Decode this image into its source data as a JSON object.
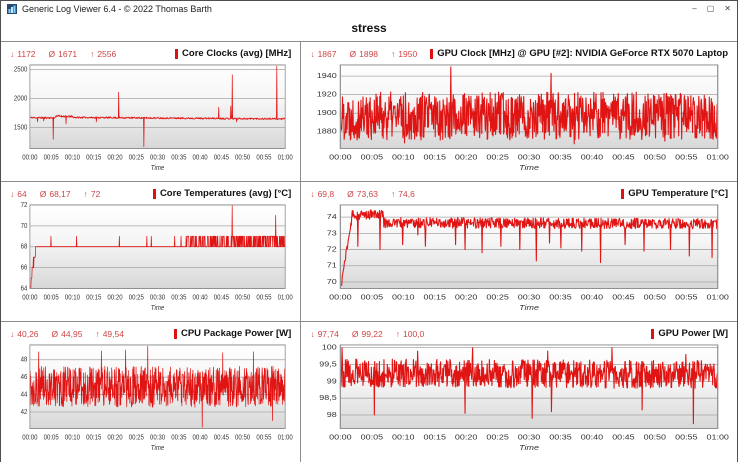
{
  "window": {
    "title": "Generic Log Viewer 6.4 - © 2022 Thomas Barth",
    "controls": {
      "minimize": "–",
      "maximize": "▢",
      "close": "✕"
    }
  },
  "page_title": "stress",
  "stats_symbols": {
    "min": "↓",
    "avg": "Ø",
    "max": "↑"
  },
  "colors": {
    "line": "#e11414",
    "stats_text": "#cf4545",
    "legend_chip": "#dd1111",
    "grid": "#a6a6a6",
    "plot_border": "#8f8f8f",
    "plot_gradient_top": "#ffffff",
    "plot_gradient_bottom": "#d7d7d7"
  },
  "x_axis": {
    "label": "Time",
    "ticks": [
      "00:00",
      "00:05",
      "00:10",
      "00:15",
      "00:20",
      "00:25",
      "00:30",
      "00:35",
      "00:40",
      "00:45",
      "00:50",
      "00:55",
      "01:00"
    ]
  },
  "chart_data": [
    {
      "type": "line",
      "title": "Core Clocks (avg) [MHz]",
      "stats": {
        "min": "1172",
        "avg": "1671",
        "max": "2556"
      },
      "ylim": [
        1140,
        2580
      ],
      "y_ticks": [
        {
          "v": 1500,
          "label": "1500"
        },
        {
          "v": 2000,
          "label": "2000"
        },
        {
          "v": 2500,
          "label": "2500"
        }
      ],
      "seed": 11,
      "points": 700,
      "segments": [
        {
          "t0": 0,
          "t1": 0.1,
          "v0": 1672,
          "v1": 1668,
          "noise": 16
        },
        {
          "t0": 0.1,
          "t1": 0.17,
          "v0": 1702,
          "v1": 1688,
          "noise": 18
        },
        {
          "t0": 0.17,
          "t1": 1,
          "v0": 1676,
          "v1": 1650,
          "noise": 14
        }
      ],
      "clamp": [
        1160,
        2560
      ],
      "spikes": [
        {
          "t": 0.03,
          "v": 1600
        },
        {
          "t": 0.055,
          "v": 1615
        },
        {
          "t": 0.092,
          "v": 1300
        },
        {
          "t": 0.142,
          "v": 1565
        },
        {
          "t": 0.26,
          "v": 1602
        },
        {
          "t": 0.347,
          "v": 2110
        },
        {
          "t": 0.447,
          "v": 1172
        },
        {
          "t": 0.74,
          "v": 1850
        },
        {
          "t": 0.787,
          "v": 1870
        },
        {
          "t": 0.792,
          "v": 2410
        },
        {
          "t": 0.81,
          "v": 1600
        },
        {
          "t": 0.967,
          "v": 2556
        }
      ]
    },
    {
      "type": "line",
      "title": "GPU Clock [MHz] @ GPU [#2]: NVIDIA GeForce RTX 5070 Laptop",
      "stats": {
        "min": "1867",
        "avg": "1898",
        "max": "1950"
      },
      "ylim": [
        1862,
        1952
      ],
      "y_ticks": [
        {
          "v": 1880,
          "label": "1880"
        },
        {
          "v": 1900,
          "label": "1900"
        },
        {
          "v": 1920,
          "label": "1920"
        },
        {
          "v": 1940,
          "label": "1940"
        }
      ],
      "seed": 22,
      "points": 900,
      "segments": [
        {
          "t0": 0,
          "t1": 1,
          "v0": 1897,
          "v1": 1897,
          "noise": 26
        }
      ],
      "clamp": [
        1867,
        1934
      ],
      "spikes": [
        {
          "t": 0.17,
          "v": 1868
        },
        {
          "t": 0.292,
          "v": 1950
        },
        {
          "t": 0.558,
          "v": 1943
        },
        {
          "t": 0.62,
          "v": 1867
        },
        {
          "t": 0.86,
          "v": 1870
        }
      ]
    },
    {
      "type": "line",
      "title": "Core Temperatures (avg) [°C]",
      "stats": {
        "min": "64",
        "avg": "68,17",
        "max": "72"
      },
      "ylim": [
        64,
        72
      ],
      "y_ticks": [
        {
          "v": 64,
          "label": "64"
        },
        {
          "v": 66,
          "label": "66"
        },
        {
          "v": 68,
          "label": "68"
        },
        {
          "v": 70,
          "label": "70"
        },
        {
          "v": 72,
          "label": "72"
        }
      ],
      "seed": 33,
      "points": 800,
      "quantize": true,
      "segments": [
        {
          "t0": 0,
          "t1": 0.004,
          "v0": 64,
          "v1": 64,
          "noise": 0
        },
        {
          "t0": 0.004,
          "t1": 0.022,
          "v0": 64.6,
          "v1": 67.8,
          "noise": 0.3
        },
        {
          "t0": 0.022,
          "t1": 0.608,
          "v0": 68.05,
          "v1": 68.05,
          "noise": 0.4
        },
        {
          "t0": 0.608,
          "t1": 1,
          "v0": 68.45,
          "v1": 68.45,
          "noise": 0.52
        }
      ],
      "clamp": [
        64,
        72
      ],
      "spikes": [
        {
          "t": 0.083,
          "v": 69
        },
        {
          "t": 0.183,
          "v": 69
        },
        {
          "t": 0.35,
          "v": 69
        },
        {
          "t": 0.458,
          "v": 69
        },
        {
          "t": 0.475,
          "v": 69
        },
        {
          "t": 0.567,
          "v": 69
        },
        {
          "t": 0.592,
          "v": 69
        },
        {
          "t": 0.792,
          "v": 72
        },
        {
          "t": 0.963,
          "v": 71
        }
      ]
    },
    {
      "type": "line",
      "title": "GPU Temperature [°C]",
      "stats": {
        "min": "69,8",
        "avg": "73,63",
        "max": "74,6"
      },
      "ylim": [
        69.6,
        74.75
      ],
      "y_ticks": [
        {
          "v": 70,
          "label": "70"
        },
        {
          "v": 71,
          "label": "71"
        },
        {
          "v": 72,
          "label": "72"
        },
        {
          "v": 73,
          "label": "73"
        },
        {
          "v": 74,
          "label": "74"
        }
      ],
      "seed": 44,
      "points": 800,
      "segments": [
        {
          "t0": 0,
          "t1": 0.004,
          "v0": 69.8,
          "v1": 69.8,
          "noise": 0
        },
        {
          "t0": 0.004,
          "t1": 0.03,
          "v0": 70.2,
          "v1": 73.8,
          "noise": 0.2
        },
        {
          "t0": 0.03,
          "t1": 0.115,
          "v0": 74.1,
          "v1": 74.2,
          "noise": 0.3
        },
        {
          "t0": 0.115,
          "t1": 1,
          "v0": 73.65,
          "v1": 73.6,
          "noise": 0.33
        }
      ],
      "clamp": [
        69.8,
        74.6
      ],
      "spikes": [
        {
          "t": 0.046,
          "v": 72.2
        },
        {
          "t": 0.105,
          "v": 72.0
        },
        {
          "t": 0.165,
          "v": 72.3
        },
        {
          "t": 0.205,
          "v": 72.9
        },
        {
          "t": 0.225,
          "v": 72.2
        },
        {
          "t": 0.305,
          "v": 72.3
        },
        {
          "t": 0.33,
          "v": 72.0
        },
        {
          "t": 0.375,
          "v": 71.8
        },
        {
          "t": 0.425,
          "v": 72.2
        },
        {
          "t": 0.475,
          "v": 72.0
        },
        {
          "t": 0.52,
          "v": 71.3
        },
        {
          "t": 0.555,
          "v": 72.4
        },
        {
          "t": 0.585,
          "v": 72.1
        },
        {
          "t": 0.64,
          "v": 71.9
        },
        {
          "t": 0.69,
          "v": 71.2
        },
        {
          "t": 0.755,
          "v": 72.3
        },
        {
          "t": 0.805,
          "v": 71.9
        },
        {
          "t": 0.875,
          "v": 72.0
        },
        {
          "t": 0.925,
          "v": 71.6
        },
        {
          "t": 0.985,
          "v": 71.5
        }
      ]
    },
    {
      "type": "line",
      "title": "CPU Package Power [W]",
      "stats": {
        "min": "40,26",
        "avg": "44,95",
        "max": "49,54"
      },
      "ylim": [
        40.1,
        49.7
      ],
      "y_ticks": [
        {
          "v": 42,
          "label": "42"
        },
        {
          "v": 44,
          "label": "44"
        },
        {
          "v": 46,
          "label": "46"
        },
        {
          "v": 48,
          "label": "48"
        }
      ],
      "seed": 55,
      "points": 900,
      "segments": [
        {
          "t0": 0,
          "t1": 1,
          "v0": 44.9,
          "v1": 44.9,
          "noise": 2.35
        }
      ],
      "clamp": [
        40.3,
        49.3
      ],
      "spikes": [
        {
          "t": 0.035,
          "v": 48.9
        },
        {
          "t": 0.28,
          "v": 49.0
        },
        {
          "t": 0.375,
          "v": 49.1
        },
        {
          "t": 0.462,
          "v": 49.54
        },
        {
          "t": 0.675,
          "v": 40.26
        },
        {
          "t": 0.755,
          "v": 48.8
        },
        {
          "t": 0.875,
          "v": 48.9
        },
        {
          "t": 0.95,
          "v": 41.0
        }
      ]
    },
    {
      "type": "line",
      "title": "GPU Power [W]",
      "stats": {
        "min": "97,74",
        "avg": "99,22",
        "max": "100,0"
      },
      "ylim": [
        97.6,
        100.08
      ],
      "y_ticks": [
        {
          "v": 98,
          "label": "98"
        },
        {
          "v": 98.5,
          "label": "98,5"
        },
        {
          "v": 99,
          "label": "99"
        },
        {
          "v": 99.5,
          "label": "99,5"
        },
        {
          "v": 100,
          "label": "100"
        }
      ],
      "seed": 66,
      "points": 900,
      "segments": [
        {
          "t0": 0,
          "t1": 1,
          "v0": 99.25,
          "v1": 99.2,
          "noise": 0.42
        }
      ],
      "clamp": [
        97.8,
        99.85
      ],
      "spikes": [
        {
          "t": 0.004,
          "v": 100
        },
        {
          "t": 0.09,
          "v": 98.0
        },
        {
          "t": 0.205,
          "v": 99.9
        },
        {
          "t": 0.33,
          "v": 98.05
        },
        {
          "t": 0.35,
          "v": 100
        },
        {
          "t": 0.508,
          "v": 97.9
        },
        {
          "t": 0.55,
          "v": 99.9
        },
        {
          "t": 0.56,
          "v": 98.1
        },
        {
          "t": 0.72,
          "v": 100
        },
        {
          "t": 0.8,
          "v": 98.15
        },
        {
          "t": 0.915,
          "v": 99.8
        },
        {
          "t": 0.935,
          "v": 97.74
        }
      ]
    }
  ]
}
